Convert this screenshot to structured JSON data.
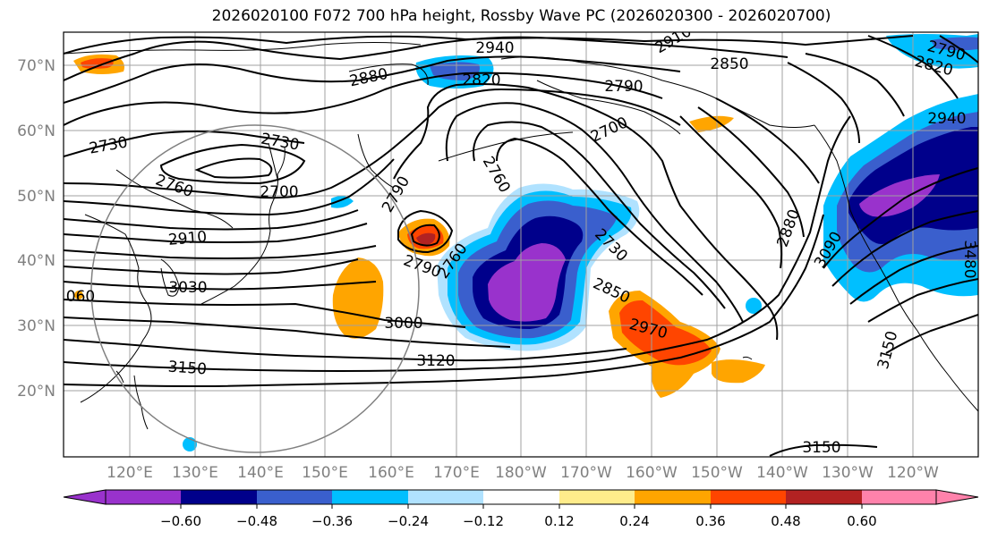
{
  "title": "2026020100 F072 700 hPa height, Rossby Wave PC (2026020300 - 2026020700)",
  "lat_labels": [
    "70°N",
    "60°N",
    "50°N",
    "40°N",
    "30°N",
    "20°N"
  ],
  "lon_labels": [
    "120°E",
    "130°E",
    "140°E",
    "150°E",
    "160°E",
    "170°E",
    "180°W",
    "170°W",
    "160°W",
    "150°W",
    "140°W",
    "130°W",
    "120°W"
  ],
  "contour_labels": [
    "2940",
    "2910",
    "2850",
    "2790",
    "2820",
    "2880",
    "2820",
    "2790",
    "2700",
    "2940",
    "2730",
    "2730",
    "2700",
    "2760",
    "2760",
    "2790",
    "2730",
    "2910",
    "2790",
    "2760",
    "3030",
    "060",
    "2850",
    "2880",
    "3090",
    "3480",
    "2970",
    "3000",
    "3150",
    "3120",
    "3150",
    "3150"
  ],
  "colorbar": {
    "ticks": [
      "−0.60",
      "−0.48",
      "−0.36",
      "−0.24",
      "−0.12",
      "0.12",
      "0.24",
      "0.36",
      "0.48",
      "0.60"
    ],
    "colors": [
      "#9932cc",
      "#00008b",
      "#3a5fcd",
      "#00bfff",
      "#b0e2ff",
      "#ffffff",
      "#ffec8b",
      "#ffa500",
      "#ff4500",
      "#b22222",
      "#ff82ab"
    ]
  }
}
